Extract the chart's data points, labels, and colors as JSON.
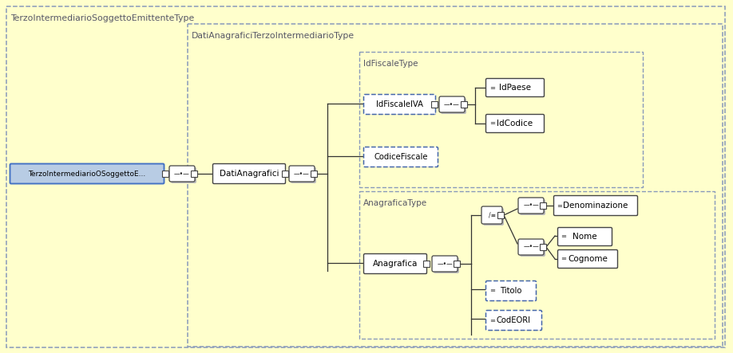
{
  "bg_color": "#ffffcc",
  "box_color": "#7a9cc0",
  "node_blue_face": "#b8cce4",
  "node_blue_edge": "#4472c4",
  "node_white_face": "#ffffff",
  "node_white_edge": "#444444",
  "dashed_node_edge": "#4466aa",
  "connector_face": "#ffffff",
  "connector_edge": "#444444",
  "line_color": "#333333",
  "text_color": "#333333",
  "shadow_color": "#cccccc",
  "label_outer": "TerzoIntermediarioSoggettoEmittenteType",
  "label_dati": "DatiAnagraficiTerzoIntermediarioType",
  "label_idfiscale_type": "IdFiscaleType",
  "label_anagrafica_type": "AnagraficaType",
  "label_main": "TerzoIntermediarioOSoggettoE...",
  "label_dati_node": "DatiAnagrafici",
  "label_idfiscaleiva": "IdFiscaleIVA",
  "label_codicefiscale": "CodiceFiscale",
  "label_idpaese": "IdPaese",
  "label_idcodice": "IdCodice",
  "label_anagrafica": "Anagrafica",
  "label_denominazione": "Denominazione",
  "label_nome": "Nome",
  "label_cognome": "Cognome",
  "label_titolo": "Titolo",
  "label_codeori": "CodEORI"
}
